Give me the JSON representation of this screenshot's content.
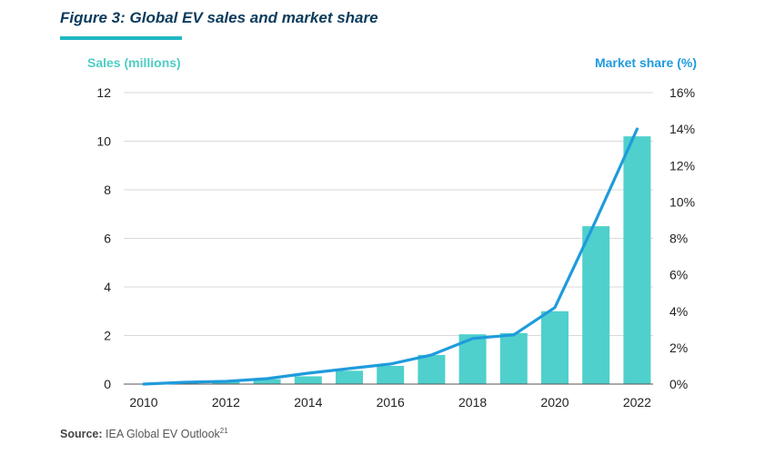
{
  "figure": {
    "title": "Figure 3: Global EV sales and market share",
    "source_label": "Source:",
    "source_text": "IEA Global EV Outlook",
    "source_ref": "21"
  },
  "colors": {
    "bar": "#4fd0cc",
    "line": "#1f9bdc",
    "grid": "#d9d9d9",
    "axis": "#555555",
    "title": "#0b3b5c",
    "rule": "#1fb8c4"
  },
  "chart_data": {
    "type": "bar+line",
    "title": "Figure 3: Global EV sales and market share",
    "x": [
      2010,
      2011,
      2012,
      2013,
      2014,
      2015,
      2016,
      2017,
      2018,
      2019,
      2020,
      2021,
      2022
    ],
    "x_tick_labels": [
      "2010",
      "2012",
      "2014",
      "2016",
      "2018",
      "2020",
      "2022"
    ],
    "series": [
      {
        "name": "Sales (millions)",
        "kind": "bar",
        "axis": "left",
        "values": [
          0.01,
          0.05,
          0.12,
          0.2,
          0.32,
          0.55,
          0.75,
          1.2,
          2.05,
          2.1,
          3.0,
          6.5,
          10.2
        ]
      },
      {
        "name": "Market share (%)",
        "kind": "line",
        "axis": "right",
        "values": [
          0.0,
          0.1,
          0.15,
          0.3,
          0.6,
          0.85,
          1.1,
          1.6,
          2.5,
          2.7,
          4.2,
          9.0,
          14.0
        ]
      }
    ],
    "ylabel_left": "Sales (millions)",
    "ylim_left": [
      0,
      12
    ],
    "yticks_left": [
      "0",
      "2",
      "4",
      "6",
      "8",
      "10",
      "12"
    ],
    "ylabel_right": "Market share (%)",
    "ylim_right": [
      0,
      16
    ],
    "yticks_right": [
      "0%",
      "2%",
      "4%",
      "6%",
      "8%",
      "10%",
      "12%",
      "14%",
      "16%"
    ],
    "grid": true,
    "legend": "none"
  }
}
